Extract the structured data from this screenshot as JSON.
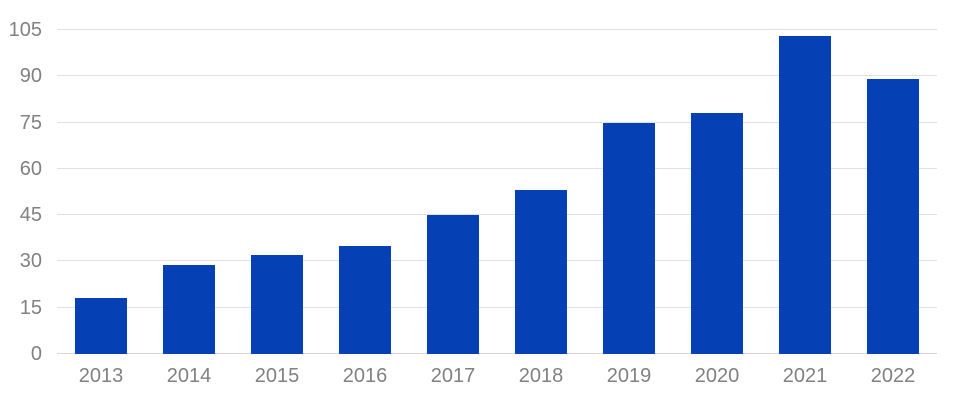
{
  "chart_data": {
    "type": "bar",
    "categories": [
      "2013",
      "2014",
      "2015",
      "2016",
      "2017",
      "2018",
      "2019",
      "2020",
      "2021",
      "2022"
    ],
    "values": [
      18,
      29,
      32,
      35,
      45,
      53,
      75,
      78,
      103,
      89
    ],
    "y_ticks": [
      0,
      15,
      30,
      45,
      60,
      75,
      90,
      105
    ],
    "ylim": [
      0,
      105
    ],
    "grid": true,
    "legend": false,
    "bar_color": "#0540b4",
    "axis_label_color": "#818181",
    "gridline_color": "#e0e0e0",
    "baseline_color": "#d6d6d6",
    "background_color": "#ffffff"
  }
}
